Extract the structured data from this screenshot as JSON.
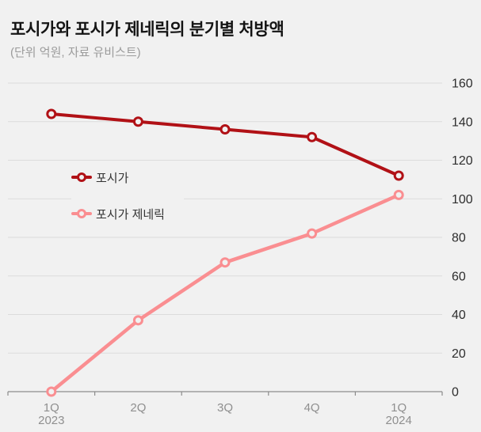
{
  "header": {
    "title": "포시가와 포시가 제네릭의 분기별 처방액",
    "subtitle": "(단위 억원, 자료 유비스트)"
  },
  "chart_data": {
    "type": "line",
    "title": "포시가와 포시가 제네릭의 분기별 처방액",
    "subtitle": "(단위 억원, 자료 유비스트)",
    "categories": [
      {
        "label": "1Q",
        "sublabel": "2023"
      },
      {
        "label": "2Q",
        "sublabel": ""
      },
      {
        "label": "3Q",
        "sublabel": ""
      },
      {
        "label": "4Q",
        "sublabel": ""
      },
      {
        "label": "1Q",
        "sublabel": "2024"
      }
    ],
    "series": [
      {
        "name": "포시가",
        "color": "#b11116",
        "line_width": 4,
        "values": [
          144,
          140,
          136,
          132,
          112
        ]
      },
      {
        "name": "포시가 제네릭",
        "color": "#fa8e91",
        "line_width": 4.5,
        "values": [
          0,
          37,
          67,
          82,
          102
        ]
      }
    ],
    "yticks": [
      0,
      20,
      40,
      60,
      80,
      100,
      120,
      140,
      160
    ],
    "ylim": [
      0,
      160
    ],
    "grid": true,
    "legend_position": "inside-left",
    "y_axis_side": "right",
    "background": "#f1f1f1",
    "gridline_color": "#dcdcdc",
    "axis_color": "#8c8c8c",
    "ylabel_color": "#2e2e2e",
    "xlabel_color": "#8f8f8f"
  }
}
